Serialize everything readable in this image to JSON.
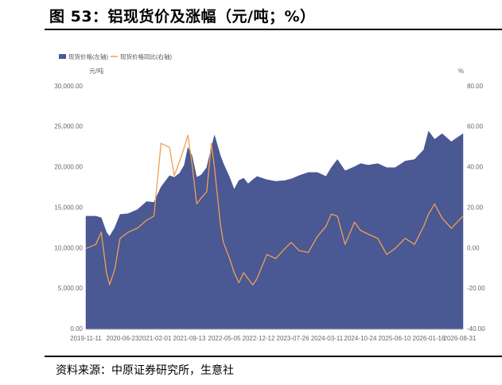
{
  "figure": {
    "title": "图 53：铝现货价及涨幅（元/吨；%）",
    "source": "资料来源：中原证券研究所，生意社"
  },
  "chart_data": {
    "type": "area",
    "title": "",
    "series": [
      {
        "name": "现货价格(左轴)",
        "kind": "area",
        "axis": "left",
        "color": "#4a5894",
        "x": [
          "2019-11-11",
          "2020-01-15",
          "2020-02-20",
          "2020-03-25",
          "2020-04-15",
          "2020-05-20",
          "2020-06-23",
          "2020-08-15",
          "2020-10-15",
          "2020-12-15",
          "2021-02-01",
          "2021-03-20",
          "2021-05-15",
          "2021-06-15",
          "2021-07-20",
          "2021-08-20",
          "2021-09-13",
          "2021-10-10",
          "2021-11-10",
          "2021-12-10",
          "2022-01-15",
          "2022-02-15",
          "2022-03-07",
          "2022-04-15",
          "2022-05-05",
          "2022-06-15",
          "2022-07-15",
          "2022-08-15",
          "2022-09-15",
          "2022-10-15",
          "2022-11-15",
          "2022-12-12",
          "2023-02-15",
          "2023-04-15",
          "2023-06-15",
          "2023-07-26",
          "2023-09-15",
          "2023-11-15",
          "2024-01-15",
          "2024-03-11",
          "2024-04-15",
          "2024-05-25",
          "2024-07-15",
          "2024-09-15",
          "2024-10-24",
          "2024-12-15",
          "2025-02-15",
          "2025-04-15",
          "2025-06-10",
          "2025-08-15",
          "2025-10-15",
          "2025-12-15",
          "2026-01-16",
          "2026-02-25",
          "2026-04-15",
          "2026-06-15",
          "2026-08-31"
        ],
        "values": [
          14000,
          14000,
          13800,
          12000,
          11500,
          12600,
          14200,
          14300,
          14800,
          15800,
          15700,
          17600,
          19000,
          18800,
          19300,
          20300,
          22500,
          21500,
          18800,
          19100,
          20000,
          22500,
          24000,
          21500,
          20500,
          18800,
          17300,
          18400,
          18700,
          18000,
          18500,
          18900,
          18500,
          18300,
          18400,
          18600,
          19000,
          19400,
          19400,
          18900,
          20000,
          21000,
          19600,
          20100,
          20500,
          20300,
          20500,
          20000,
          20000,
          20800,
          21000,
          22200,
          24500,
          23500,
          24200,
          23200,
          24200
        ]
      },
      {
        "name": "现货价格同比(右轴)",
        "kind": "line",
        "axis": "right",
        "color": "#f0a050",
        "x": [
          "2019-11-11",
          "2020-01-15",
          "2020-02-20",
          "2020-03-25",
          "2020-04-15",
          "2020-05-20",
          "2020-06-23",
          "2020-08-15",
          "2020-10-15",
          "2020-12-15",
          "2021-02-01",
          "2021-03-20",
          "2021-05-15",
          "2021-06-15",
          "2021-07-20",
          "2021-08-20",
          "2021-09-13",
          "2021-10-10",
          "2021-11-10",
          "2021-12-10",
          "2022-01-15",
          "2022-02-15",
          "2022-03-07",
          "2022-04-15",
          "2022-05-05",
          "2022-06-15",
          "2022-07-15",
          "2022-08-15",
          "2022-09-15",
          "2022-10-15",
          "2022-11-15",
          "2022-12-12",
          "2023-02-15",
          "2023-04-15",
          "2023-06-15",
          "2023-07-26",
          "2023-09-15",
          "2023-11-15",
          "2024-01-15",
          "2024-03-11",
          "2024-04-15",
          "2024-05-25",
          "2024-07-15",
          "2024-09-15",
          "2024-10-24",
          "2024-12-15",
          "2025-02-15",
          "2025-04-15",
          "2025-06-10",
          "2025-08-15",
          "2025-10-15",
          "2025-12-15",
          "2026-01-16",
          "2026-02-25",
          "2026-04-15",
          "2026-06-15",
          "2026-08-31"
        ],
        "values": [
          0,
          2,
          8,
          -12,
          -18,
          -10,
          5,
          8,
          10,
          14,
          16,
          52,
          50,
          36,
          43,
          50,
          56,
          42,
          22,
          25,
          28,
          52,
          40,
          12,
          3,
          -5,
          -12,
          -17,
          -12,
          -15,
          -18,
          -15,
          -3,
          -5,
          0,
          3,
          -1,
          -2,
          6,
          11,
          17,
          16,
          2,
          13,
          9,
          7,
          5,
          -3,
          0,
          5,
          2,
          11,
          17,
          22,
          15,
          10,
          16
        ]
      }
    ],
    "xtick_labels": [
      "2019-11-11",
      "2020-06-23",
      "2021-02-01",
      "2021-09-13",
      "2022-05-05",
      "2022-12-12",
      "2023-07-26",
      "2024-03-11",
      "2024-10-24",
      "2025-06-10",
      "2026-01-16",
      "2026-08-31"
    ],
    "yleft": {
      "label": "元/吨",
      "ticks": [
        "0.00",
        "5,000.00",
        "10,000.00",
        "15,000.00",
        "20,000.00",
        "25,000.00",
        "30,000.00"
      ],
      "range": [
        0,
        30000
      ]
    },
    "yright": {
      "label": "%",
      "ticks": [
        "-40.00",
        "-20.00",
        "0.00",
        "20.00",
        "40.00",
        "60.00",
        "80.00"
      ],
      "range": [
        -40,
        80
      ]
    },
    "legend": "top-left",
    "grid": false
  }
}
